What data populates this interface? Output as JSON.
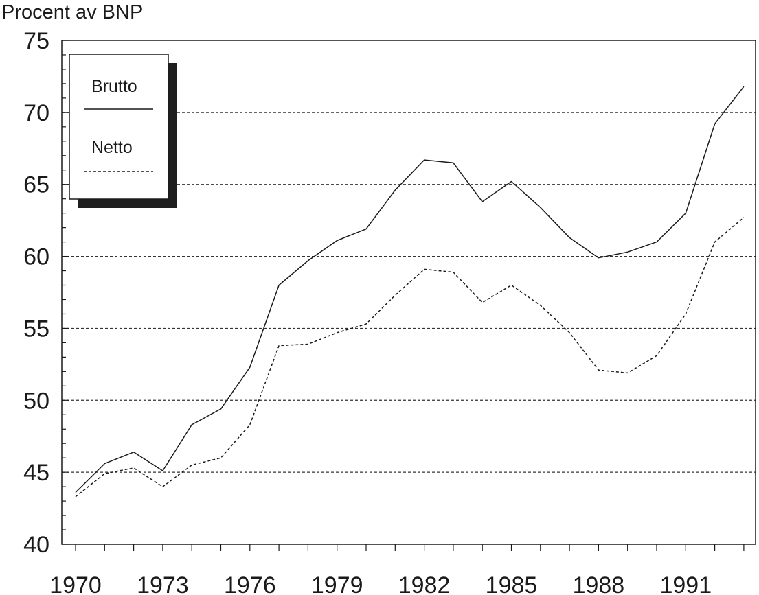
{
  "chart_data": {
    "type": "line",
    "title": "",
    "ylabel": "Procent av BNP",
    "xlabel": "",
    "ylim": [
      40,
      75
    ],
    "xlim": [
      1970,
      1993
    ],
    "yticks": [
      40,
      45,
      50,
      55,
      60,
      65,
      70,
      75
    ],
    "xticks": [
      1970,
      1973,
      1976,
      1979,
      1982,
      1985,
      1988,
      1991
    ],
    "grid": "horizontal dotted",
    "legend_position": "top-left",
    "x": [
      1970,
      1971,
      1972,
      1973,
      1974,
      1975,
      1976,
      1977,
      1978,
      1979,
      1980,
      1981,
      1982,
      1983,
      1984,
      1985,
      1986,
      1987,
      1988,
      1989,
      1990,
      1991,
      1992,
      1993
    ],
    "series": [
      {
        "name": "Brutto",
        "style": "solid",
        "values": [
          43.6,
          45.6,
          46.4,
          45.1,
          48.3,
          49.4,
          52.3,
          58.0,
          59.7,
          61.1,
          61.9,
          64.6,
          66.7,
          66.5,
          63.8,
          65.2,
          63.4,
          61.3,
          59.9,
          60.3,
          61.0,
          63.0,
          69.2,
          71.8
        ]
      },
      {
        "name": "Netto",
        "style": "dashed",
        "values": [
          43.3,
          44.9,
          45.3,
          44.0,
          45.5,
          46.0,
          48.3,
          53.8,
          53.9,
          54.7,
          55.3,
          57.3,
          59.1,
          58.9,
          56.8,
          58.0,
          56.6,
          54.7,
          52.1,
          51.9,
          53.1,
          56.0,
          61.0,
          62.7
        ]
      }
    ]
  }
}
